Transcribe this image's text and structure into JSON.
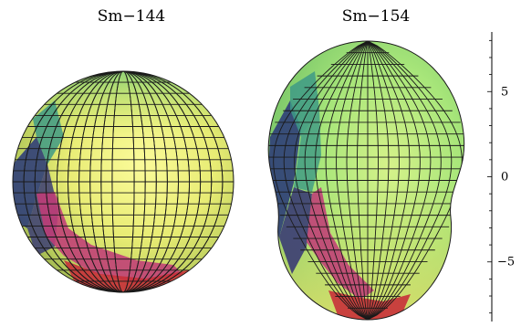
{
  "titles": {
    "left": "Sm−144",
    "right": "Sm−154"
  },
  "axis": {
    "ticks": [
      {
        "label": "5",
        "value": 5
      },
      {
        "label": "0",
        "value": 0
      },
      {
        "label": "−5",
        "value": -5
      }
    ],
    "range": [
      -8.5,
      8.5
    ]
  },
  "shapes": [
    {
      "name": "sm-144",
      "shape": "sphere"
    },
    {
      "name": "sm-154",
      "shape": "prolate-deformed"
    }
  ],
  "colors": {
    "highlight": "#f5f58a",
    "base_yellow": "#d7e06a",
    "green": "#9fe07a",
    "teal": "#3e9a86",
    "navy": "#2f3e78",
    "magenta": "#c03c78",
    "red": "#c8303a",
    "grid": "#1a1a1a"
  }
}
